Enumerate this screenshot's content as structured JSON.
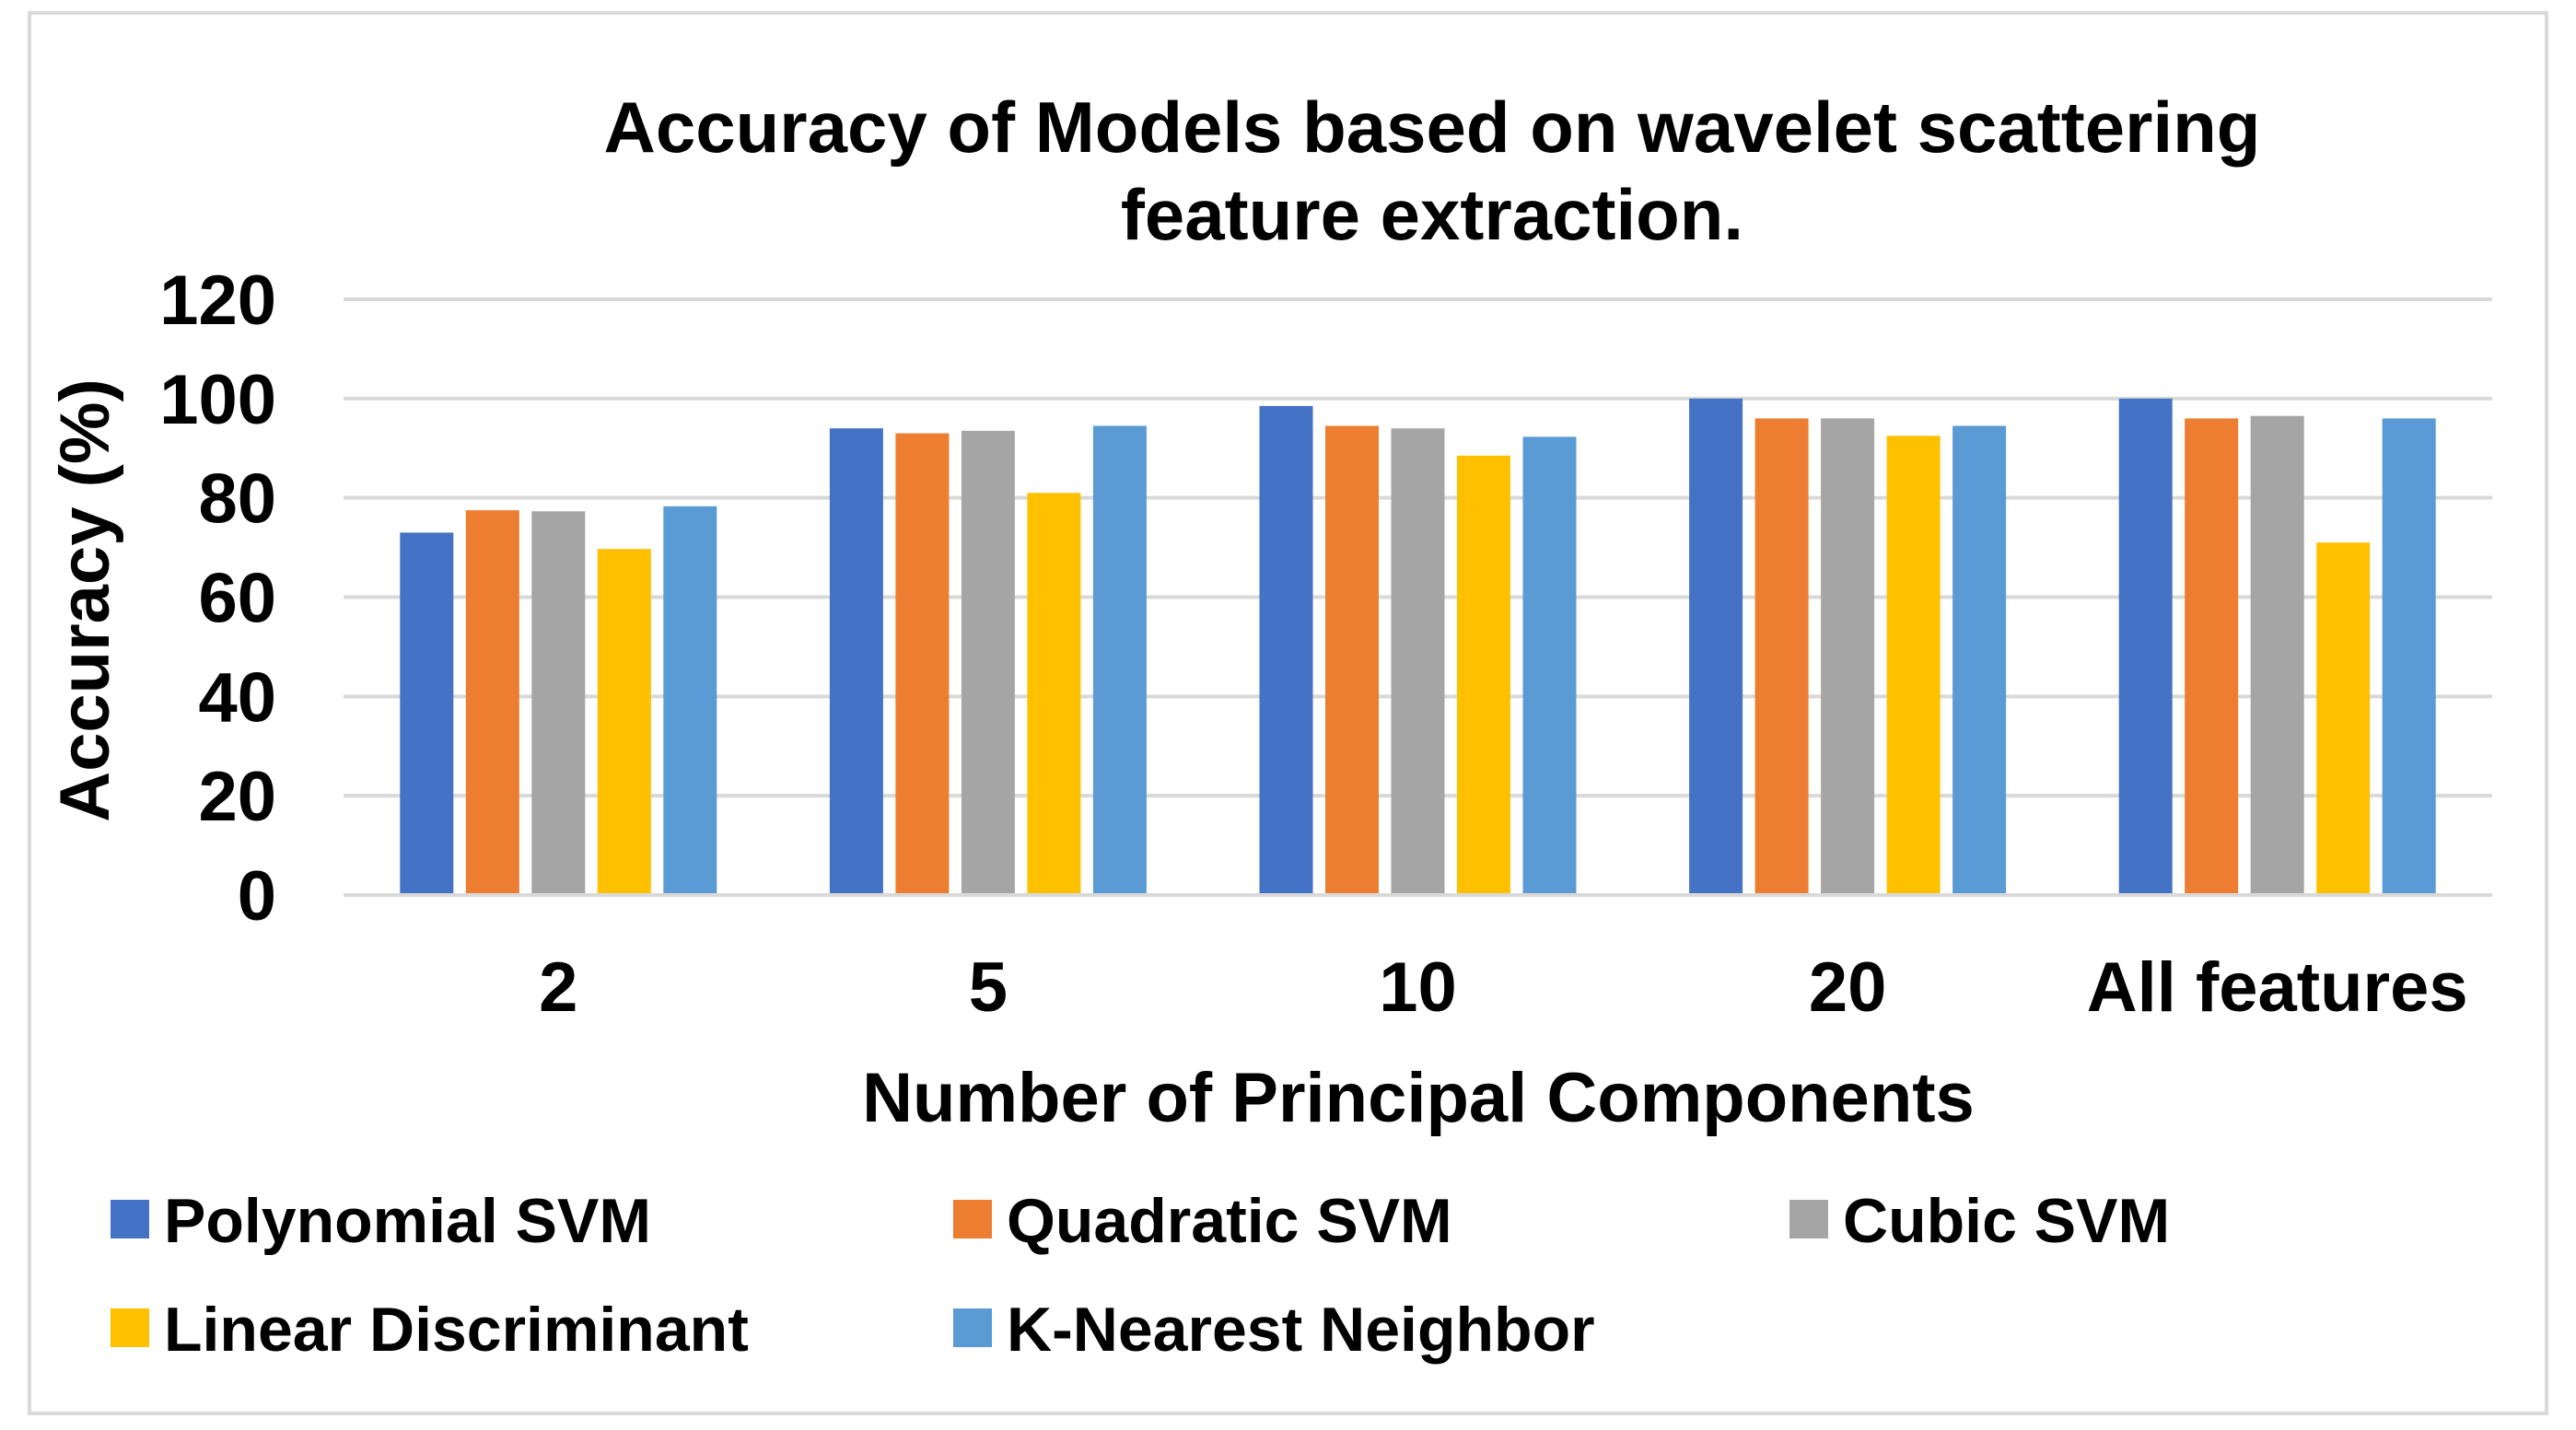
{
  "chart_data": {
    "type": "bar",
    "title": "Accuracy of Models based on wavelet scattering feature extraction.",
    "title_lines": [
      "Accuracy of Models based on wavelet scattering",
      "feature extraction."
    ],
    "xlabel": "Number of Principal Components",
    "ylabel": "Accuracy (%)",
    "ylim": [
      0,
      120
    ],
    "yticks": [
      0,
      20,
      40,
      60,
      80,
      100,
      120
    ],
    "grid": true,
    "legend_position": "bottom",
    "categories": [
      "2",
      "5",
      "10",
      "20",
      "All features"
    ],
    "series": [
      {
        "name": "Polynomial SVM",
        "color": "#4472c4",
        "values": [
          73,
          94,
          98.5,
          100,
          100
        ]
      },
      {
        "name": "Quadratic SVM",
        "color": "#ed7d31",
        "values": [
          77.5,
          93,
          94.5,
          96,
          96
        ]
      },
      {
        "name": "Cubic SVM",
        "color": "#a5a5a5",
        "values": [
          77.3,
          93.5,
          94,
          96,
          96.5
        ]
      },
      {
        "name": "Linear Discriminant",
        "color": "#ffc000",
        "values": [
          69.7,
          81,
          88.5,
          92.5,
          71
        ]
      },
      {
        "name": "K-Nearest Neighbor",
        "color": "#5b9bd5",
        "values": [
          78.3,
          94.5,
          92.3,
          94.5,
          96
        ]
      }
    ]
  },
  "colors": {
    "gridline": "#d9d9d9",
    "frame": "#d9d9d9",
    "text": "#000000"
  }
}
